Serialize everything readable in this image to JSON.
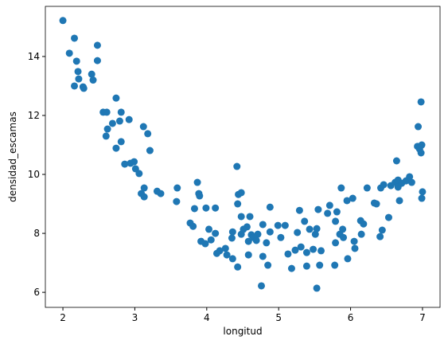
{
  "chart_data": {
    "type": "scatter",
    "x_label": "longitud",
    "y_label": "densidad_escamas",
    "color": "#1f77b4",
    "xlim": [
      1.756,
      7.244
    ],
    "ylim": [
      5.49,
      15.7
    ],
    "xticks": [
      2,
      3,
      4,
      5,
      6,
      7
    ],
    "yticks": [
      6,
      8,
      10,
      12,
      14
    ],
    "x": [
      2.0,
      2.09,
      2.16,
      2.16,
      2.19,
      2.21,
      2.22,
      2.28,
      2.29,
      2.4,
      2.42,
      2.48,
      2.48,
      2.56,
      2.61,
      2.6,
      2.62,
      2.69,
      2.74,
      2.74,
      2.79,
      2.81,
      2.81,
      2.86,
      2.92,
      2.94,
      2.99,
      3.01,
      3.06,
      3.09,
      3.12,
      3.13,
      3.13,
      3.18,
      3.21,
      3.31,
      3.36,
      3.58,
      3.59,
      3.77,
      3.81,
      3.83,
      3.87,
      3.89,
      3.9,
      3.92,
      3.98,
      3.99,
      4.03,
      4.06,
      4.12,
      4.12,
      4.14,
      4.18,
      4.26,
      4.28,
      4.35,
      4.36,
      4.36,
      4.42,
      4.43,
      4.43,
      4.44,
      4.48,
      4.48,
      4.48,
      4.51,
      4.56,
      4.58,
      4.58,
      4.6,
      4.62,
      4.65,
      4.69,
      4.71,
      4.76,
      4.78,
      4.78,
      4.83,
      4.85,
      4.88,
      4.88,
      4.99,
      5.03,
      5.09,
      5.13,
      5.18,
      5.23,
      5.26,
      5.29,
      5.31,
      5.36,
      5.39,
      5.39,
      5.43,
      5.48,
      5.51,
      5.53,
      5.53,
      5.55,
      5.57,
      5.59,
      5.68,
      5.71,
      5.78,
      5.79,
      5.79,
      5.81,
      5.85,
      5.87,
      5.89,
      5.9,
      5.96,
      5.95,
      6.03,
      6.05,
      6.06,
      6.14,
      6.15,
      6.18,
      6.23,
      6.33,
      6.36,
      6.41,
      6.42,
      6.44,
      6.46,
      6.53,
      6.56,
      6.62,
      6.64,
      6.66,
      6.66,
      6.68,
      6.71,
      6.77,
      6.82,
      6.85,
      6.93,
      6.94,
      6.96,
      6.98,
      6.99,
      6.98,
      7.0,
      6.99
    ],
    "y": [
      15.22,
      14.11,
      14.62,
      13.0,
      13.84,
      13.49,
      13.24,
      12.97,
      12.92,
      13.4,
      13.2,
      14.38,
      13.86,
      12.11,
      12.11,
      11.3,
      11.54,
      11.73,
      12.59,
      10.89,
      11.81,
      12.11,
      11.11,
      10.35,
      11.86,
      10.38,
      10.43,
      10.19,
      10.03,
      9.35,
      11.62,
      9.24,
      9.54,
      11.38,
      10.81,
      9.43,
      9.35,
      9.08,
      9.54,
      8.35,
      8.24,
      8.84,
      9.73,
      9.35,
      9.27,
      7.73,
      7.65,
      8.86,
      8.14,
      7.78,
      8.0,
      8.86,
      7.32,
      7.41,
      7.49,
      7.27,
      7.84,
      8.05,
      7.14,
      10.27,
      6.86,
      9.0,
      9.32,
      9.38,
      8.57,
      7.97,
      8.14,
      8.22,
      7.73,
      7.27,
      8.57,
      7.95,
      7.86,
      7.76,
      7.97,
      6.22,
      8.3,
      7.22,
      7.68,
      6.92,
      8.89,
      8.05,
      8.27,
      7.86,
      8.27,
      7.3,
      6.81,
      7.43,
      8.03,
      8.78,
      7.54,
      8.41,
      7.35,
      6.89,
      8.14,
      7.46,
      7.97,
      8.16,
      6.14,
      8.81,
      6.92,
      7.41,
      8.68,
      8.95,
      6.92,
      8.41,
      7.68,
      8.73,
      7.97,
      9.54,
      8.14,
      7.86,
      7.14,
      9.11,
      9.19,
      7.73,
      7.49,
      8.43,
      7.97,
      8.32,
      9.54,
      9.03,
      9.0,
      7.89,
      9.54,
      8.11,
      9.65,
      8.54,
      9.62,
      9.73,
      10.46,
      9.57,
      9.81,
      9.11,
      9.7,
      9.78,
      9.92,
      9.73,
      10.95,
      11.62,
      10.86,
      10.73,
      11.0,
      12.46,
      9.41,
      9.19
    ]
  }
}
